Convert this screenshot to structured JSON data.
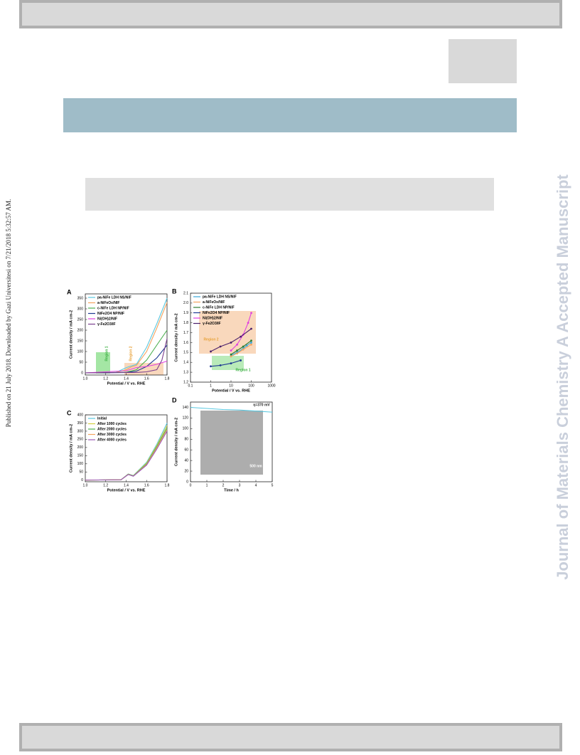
{
  "side_note": "Published on 21 July 2018. Downloaded by Gazi Universitesi on 7/21/2018 5:32:57 AM.",
  "watermark": "Journal of Materials Chemistry A Accepted Manuscript",
  "figure": {
    "panels": [
      {
        "letter": "A",
        "type": "line",
        "xlabel": "Potential / V vs. RHE",
        "ylabel": "Current density / mA cm-2",
        "xlim": [
          1.0,
          1.8
        ],
        "xticks": [
          {
            "value": 1,
            "label": "1.0"
          },
          1.2,
          1.4,
          1.6,
          {
            "value": 1.8,
            "label": "1.8"
          }
        ],
        "ylim": [
          -10,
          370
        ],
        "yticks": [
          0,
          50,
          100,
          150,
          200,
          250,
          300,
          350
        ],
        "annotations": [
          "Region 1",
          "Region 2"
        ],
        "series": [
          {
            "name": "pa-NiFe LDH NS/NIF",
            "color": "#5bc8e0",
            "x": [
              1.0,
              1.3,
              1.38,
              1.42,
              1.5,
              1.6,
              1.7,
              1.8
            ],
            "values": [
              0,
              2,
              20,
              28,
              40,
              120,
              230,
              350
            ]
          },
          {
            "name": "a-NiFeOx/NIF",
            "color": "#f4a460",
            "x": [
              1.0,
              1.3,
              1.4,
              1.45,
              1.5,
              1.6,
              1.7,
              1.8
            ],
            "values": [
              0,
              2,
              15,
              28,
              35,
              100,
              210,
              330
            ]
          },
          {
            "name": "c-NiFe LDH NP/NIF",
            "color": "#4caf50",
            "x": [
              1.0,
              1.4,
              1.5,
              1.6,
              1.7,
              1.8
            ],
            "values": [
              0,
              3,
              15,
              60,
              130,
              200
            ]
          },
          {
            "name": "NiFe2O4 NP/NIF",
            "color": "#1f3a93",
            "x": [
              1.0,
              1.4,
              1.5,
              1.6,
              1.7,
              1.8
            ],
            "values": [
              0,
              2,
              8,
              30,
              70,
              130
            ]
          },
          {
            "name": "Ni(OH)2/NIF",
            "color": "#e040e0",
            "x": [
              1.0,
              1.4,
              1.5,
              1.6,
              1.7,
              1.8
            ],
            "values": [
              0,
              10,
              25,
              30,
              40,
              55
            ]
          },
          {
            "name": "γ-Fe2O3/IF",
            "color": "#7b3f8f",
            "x": [
              1.0,
              1.5,
              1.6,
              1.7,
              1.75,
              1.8
            ],
            "values": [
              0,
              2,
              5,
              15,
              60,
              160
            ]
          }
        ]
      },
      {
        "letter": "B",
        "type": "line",
        "log_x": true,
        "markers": true,
        "xlabel": "Potential / V vs. RHE",
        "ylabel": "Current density / mA cm-2",
        "xlim": [
          0.1,
          1000
        ],
        "xticks": [
          0.1,
          1,
          10,
          100,
          1000
        ],
        "ylim": [
          1.2,
          2.1
        ],
        "yticks": [
          1.2,
          1.3,
          1.4,
          1.5,
          1.6,
          1.7,
          1.8,
          1.9,
          {
            "value": 2,
            "label": "2.0"
          },
          2.1
        ],
        "annotations": [
          "Region 2",
          "Region 1"
        ],
        "series": [
          {
            "name": "pa-NiFe LDH NS/NIF",
            "color": "#3aa6d8",
            "x": [
              10,
              20,
              40,
              60,
              100
            ],
            "values": [
              1.47,
              1.5,
              1.54,
              1.57,
              1.6
            ]
          },
          {
            "name": "a-NiFeOx/NIF",
            "color": "#f4a460",
            "x": [
              10,
              20,
              40,
              100
            ],
            "values": [
              1.46,
              1.49,
              1.53,
              1.58
            ]
          },
          {
            "name": "c-NiFe LDH NP/NIF",
            "color": "#2e7d32",
            "x": [
              10,
              20,
              40,
              100
            ],
            "values": [
              1.48,
              1.52,
              1.56,
              1.62
            ]
          },
          {
            "name": "NiFe2O4 NP/NIF",
            "color": "#1f3a93",
            "x": [
              1,
              3,
              10,
              30
            ],
            "values": [
              1.36,
              1.37,
              1.39,
              1.42
            ]
          },
          {
            "name": "Ni(OH)2/NIF",
            "color": "#e040e0",
            "x": [
              10,
              20,
              40,
              70,
              100
            ],
            "values": [
              1.52,
              1.58,
              1.68,
              1.8,
              1.9
            ]
          },
          {
            "name": "γ-Fe2O3/IF",
            "color": "#4a1f6b",
            "x": [
              1,
              3,
              10,
              30,
              100
            ],
            "values": [
              1.51,
              1.56,
              1.6,
              1.66,
              1.74
            ]
          }
        ]
      },
      {
        "letter": "C",
        "type": "line",
        "xlabel": "Potential / V vs. RHE",
        "ylabel": "Current density / mA cm-2",
        "xlim": [
          1.0,
          1.8
        ],
        "xticks": [
          {
            "value": 1,
            "label": "1.0"
          },
          1.2,
          1.4,
          1.6,
          {
            "value": 1.8,
            "label": "1.8"
          }
        ],
        "ylim": [
          -10,
          400
        ],
        "yticks": [
          0,
          50,
          100,
          150,
          200,
          250,
          300,
          350,
          400
        ],
        "annotations": [],
        "series": [
          {
            "name": "Initial",
            "color": "#5bc8e0",
            "x": [
              1.0,
              1.35,
              1.42,
              1.47,
              1.6,
              1.7,
              1.8
            ],
            "values": [
              0,
              2,
              38,
              28,
              110,
              220,
              350
            ]
          },
          {
            "name": "After 1000 cycles",
            "color": "#d4d040",
            "x": [
              1.0,
              1.35,
              1.42,
              1.47,
              1.6,
              1.7,
              1.8
            ],
            "values": [
              0,
              2,
              37,
              27,
              105,
              212,
              335
            ]
          },
          {
            "name": "After 2000 cycles",
            "color": "#4caf50",
            "x": [
              1.0,
              1.35,
              1.42,
              1.47,
              1.6,
              1.7,
              1.8
            ],
            "values": [
              0,
              2,
              36,
              26,
              100,
              205,
              320
            ]
          },
          {
            "name": "After 3000 cycles",
            "color": "#f4a460",
            "x": [
              1.0,
              1.35,
              1.42,
              1.47,
              1.6,
              1.7,
              1.8
            ],
            "values": [
              0,
              2,
              35,
              25,
              96,
              198,
              310
            ]
          },
          {
            "name": "After 4000 cycles",
            "color": "#9b59b6",
            "x": [
              1.0,
              1.35,
              1.42,
              1.47,
              1.6,
              1.7,
              1.8
            ],
            "values": [
              0,
              2,
              34,
              24,
              92,
              190,
              300
            ]
          }
        ]
      },
      {
        "letter": "D",
        "type": "line",
        "xlabel": "Time / h",
        "ylabel": "Current density / mA cm-2",
        "xlim": [
          0,
          5
        ],
        "xticks": [
          0,
          1,
          2,
          3,
          4,
          5
        ],
        "ylim": [
          0,
          150
        ],
        "yticks": [
          0,
          20,
          40,
          60,
          80,
          100,
          120,
          140
        ],
        "annotations": [
          "η=370 mV",
          "500 nm"
        ],
        "series": [
          {
            "color": "#5bc8e0",
            "x": [
              0,
              1,
              2,
              3,
              4,
              5
            ],
            "values": [
              140,
              138,
              136,
              135,
              133,
              131
            ]
          }
        ]
      }
    ]
  }
}
